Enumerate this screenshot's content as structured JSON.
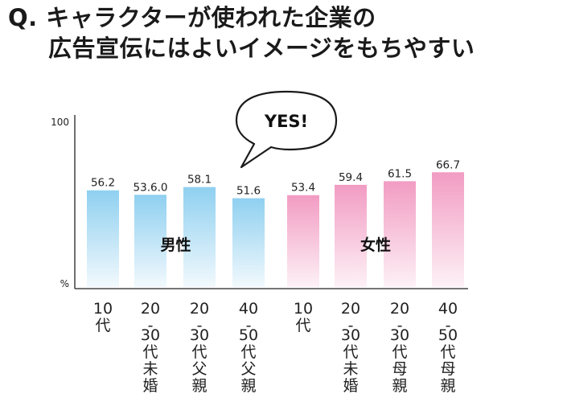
{
  "question": {
    "line1": "Q. キャラクターが使われた企業の",
    "line2": "広告宣伝にはよいイメージをもちやすい"
  },
  "bubble": {
    "text": "YES!"
  },
  "chart_data": {
    "type": "bar",
    "title": "Q. キャラクターが使われた企業の広告宣伝にはよいイメージをもちやすい",
    "ylim": [
      0,
      100
    ],
    "y_ticks": {
      "top": "100",
      "bottom": "%"
    },
    "categories": [
      "10代",
      "20-30代未婚",
      "20-30代父親",
      "40-50代父親",
      "10代",
      "20-30代未婚",
      "20-30代母親",
      "40-50代母親"
    ],
    "category_lines": [
      [
        "10",
        "代"
      ],
      [
        "20",
        "-",
        "30",
        "代",
        "未",
        "婚"
      ],
      [
        "20",
        "-",
        "30",
        "代",
        "父",
        "親"
      ],
      [
        "40",
        "-",
        "50",
        "代",
        "父",
        "親"
      ],
      [
        "10",
        "代"
      ],
      [
        "20",
        "-",
        "30",
        "代",
        "未",
        "婚"
      ],
      [
        "20",
        "-",
        "30",
        "代",
        "母",
        "親"
      ],
      [
        "40",
        "-",
        "50",
        "代",
        "母",
        "親"
      ]
    ],
    "values": [
      56.2,
      53.6,
      58.1,
      51.6,
      53.4,
      59.4,
      61.5,
      66.7
    ],
    "value_labels": [
      "56.2",
      "53.6.0",
      "58.1",
      "51.6",
      "53.4",
      "59.4",
      "61.5",
      "66.7"
    ],
    "groups": [
      {
        "name": "男性",
        "start": 0,
        "end": 3,
        "color_top": "#8fd0f0",
        "color_bottom": "#f2f9fd"
      },
      {
        "name": "女性",
        "start": 4,
        "end": 7,
        "color_top": "#f29cc3",
        "color_bottom": "#fdf1f6"
      }
    ],
    "grid": false,
    "legend": "none"
  }
}
